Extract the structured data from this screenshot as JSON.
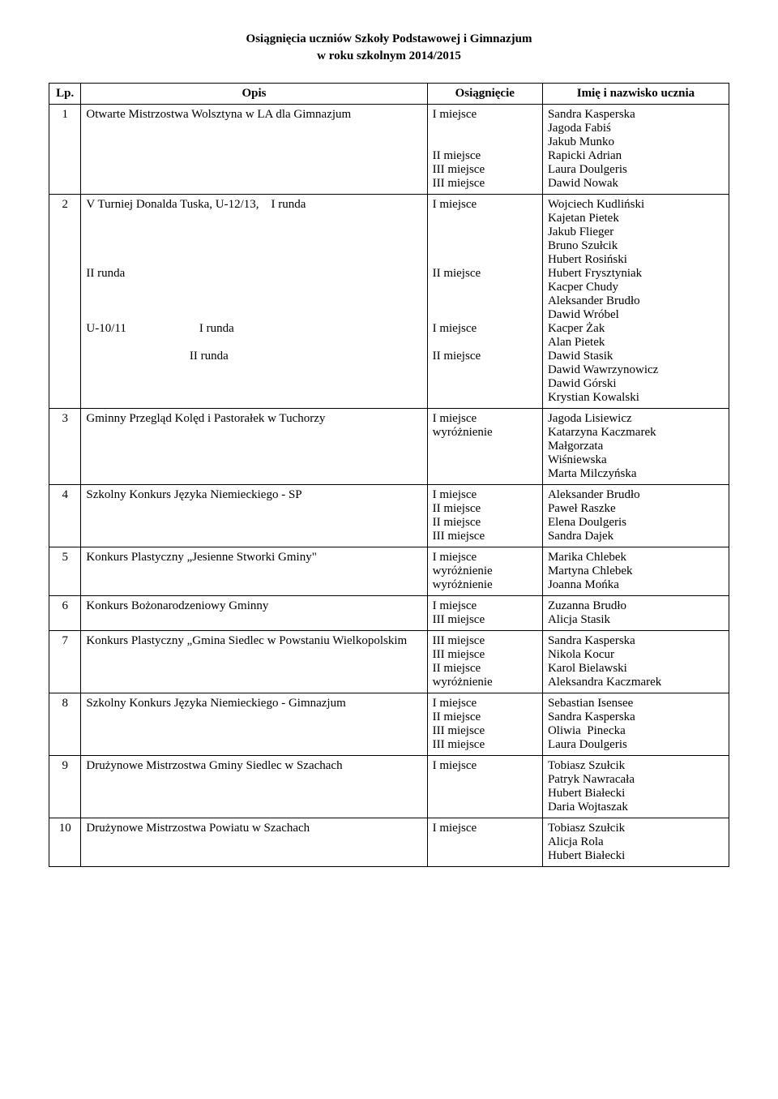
{
  "title_line1": "Osiągnięcia uczniów Szkoły Podstawowej i Gimnazjum",
  "title_line2": "w roku szkolnym 2014/2015",
  "columns": {
    "lp": "Lp.",
    "opis": "Opis",
    "osiagniecie": "Osiągnięcie",
    "imie": "Imię i nazwisko ucznia"
  },
  "rows": [
    {
      "lp": "1",
      "opis": [
        "Otwarte Mistrzostwa Wolsztyna w LA dla Gimnazjum"
      ],
      "osiagniecie": [
        "I miejsce",
        "",
        "",
        "II miejsce",
        "III miejsce",
        "III miejsce"
      ],
      "imie": [
        "Sandra Kasperska",
        "Jagoda Fabiś",
        "Jakub Munko",
        "Rapicki Adrian",
        "Laura Doulgeris",
        "Dawid Nowak"
      ]
    },
    {
      "lp": "2",
      "opis": [
        "V Turniej Donalda Tuska, U-12/13,    I runda",
        "",
        "",
        "",
        "",
        "II runda",
        "",
        "",
        "",
        "U-10/11                        I runda",
        "",
        "                                  II runda"
      ],
      "osiagniecie": [
        "I miejsce",
        "",
        "",
        "",
        "",
        "II miejsce",
        "",
        "",
        "",
        "I miejsce",
        "",
        "II miejsce"
      ],
      "imie": [
        "Wojciech Kudliński",
        "Kajetan Pietek",
        "Jakub Flieger",
        "Bruno Szułcik",
        "Hubert Rosiński",
        "Hubert Frysztyniak",
        "Kacper Chudy",
        "Aleksander Brudło",
        "Dawid Wróbel",
        "Kacper Żak",
        "Alan Pietek",
        "Dawid Stasik",
        "Dawid Wawrzynowicz",
        "Dawid Górski",
        "Krystian Kowalski"
      ]
    },
    {
      "lp": "3",
      "opis": [
        "Gminny Przegląd Kolęd i Pastorałek w Tuchorzy"
      ],
      "osiagniecie": [
        "I miejsce",
        "wyróżnienie"
      ],
      "imie": [
        "Jagoda Lisiewicz",
        "Katarzyna Kaczmarek",
        "Małgorzata",
        "Wiśniewska",
        "Marta Milczyńska"
      ]
    },
    {
      "lp": "4",
      "opis": [
        "Szkolny Konkurs Języka Niemieckiego - SP"
      ],
      "osiagniecie": [
        "I miejsce",
        "II miejsce",
        "II miejsce",
        "III miejsce"
      ],
      "imie": [
        "Aleksander Brudło",
        "Paweł Raszke",
        "Elena Doulgeris",
        "Sandra Dajek"
      ]
    },
    {
      "lp": "5",
      "opis": [
        "Konkurs Plastyczny „Jesienne Stworki Gminy\""
      ],
      "osiagniecie": [
        "I miejsce",
        "wyróżnienie",
        "wyróżnienie"
      ],
      "imie": [
        "Marika Chlebek",
        "Martyna Chlebek",
        "Joanna Mońka"
      ]
    },
    {
      "lp": "6",
      "opis": [
        "Konkurs Bożonarodzeniowy Gminny"
      ],
      "osiagniecie": [
        "I miejsce",
        "III miejsce"
      ],
      "imie": [
        "Zuzanna Brudło",
        "Alicja Stasik"
      ]
    },
    {
      "lp": "7",
      "opis": [
        "Konkurs Plastyczny „Gmina Siedlec w Powstaniu Wielkopolskim"
      ],
      "osiagniecie": [
        "III miejsce",
        "III miejsce",
        "II miejsce",
        "wyróżnienie"
      ],
      "imie": [
        "Sandra Kasperska",
        "Nikola Kocur",
        "Karol Bielawski",
        "Aleksandra Kaczmarek"
      ]
    },
    {
      "lp": "8",
      "opis": [
        "Szkolny Konkurs Języka Niemieckiego - Gimnazjum"
      ],
      "osiagniecie": [
        "I miejsce",
        "II miejsce",
        "III miejsce",
        "III miejsce"
      ],
      "imie": [
        "Sebastian Isensee",
        "Sandra Kasperska",
        "Oliwia  Pinecka",
        "Laura Doulgeris"
      ]
    },
    {
      "lp": "9",
      "opis": [
        "Drużynowe Mistrzostwa Gminy Siedlec w Szachach"
      ],
      "osiagniecie": [
        "I miejsce"
      ],
      "imie": [
        "Tobiasz Szułcik",
        "Patryk Nawracała",
        "Hubert Białecki",
        "Daria Wojtaszak"
      ]
    },
    {
      "lp": "10",
      "opis": [
        "Drużynowe Mistrzostwa Powiatu w Szachach"
      ],
      "osiagniecie": [
        "I miejsce"
      ],
      "imie": [
        "Tobiasz Szułcik",
        "Alicja Rola",
        "Hubert Białecki"
      ]
    }
  ]
}
